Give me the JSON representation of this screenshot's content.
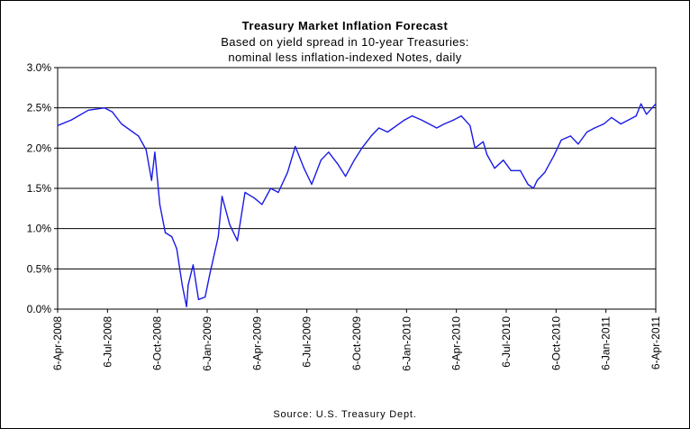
{
  "chart_data": {
    "type": "line",
    "title": "Treasury Market Inflation Forecast",
    "subtitle_lines": [
      "Based on yield spread in 10-year Treasuries:",
      "nominal less inflation-indexed Notes, daily"
    ],
    "source": "Source: U.S. Treasury Dept.",
    "xlabel": "",
    "ylabel": "",
    "ylim": [
      0,
      3.0
    ],
    "y_ticks": [
      "0.0%",
      "0.5%",
      "1.0%",
      "1.5%",
      "2.0%",
      "2.5%",
      "3.0%"
    ],
    "y_tick_values": [
      0,
      0.5,
      1.0,
      1.5,
      2.0,
      2.5,
      3.0
    ],
    "x_ticks": [
      "6-Apr-2008",
      "6-Jul-2008",
      "6-Oct-2008",
      "6-Jan-2009",
      "6-Apr-2009",
      "6-Jul-2009",
      "6-Oct-2009",
      "6-Jan-2010",
      "6-Apr-2010",
      "6-Jul-2010",
      "6-Oct-2010",
      "6-Jan-2011",
      "6-Apr-2011"
    ],
    "grid": "horizontal",
    "line_color": "#1a1ae6",
    "series": [
      {
        "x": [
          "2008-04-06",
          "2008-05-01",
          "2008-06-01",
          "2008-07-01",
          "2008-07-15",
          "2008-08-01",
          "2008-09-01",
          "2008-09-15",
          "2008-09-25",
          "2008-10-01",
          "2008-10-10",
          "2008-10-20",
          "2008-11-01",
          "2008-11-10",
          "2008-11-20",
          "2008-11-28",
          "2008-12-01",
          "2008-12-10",
          "2008-12-20",
          "2009-01-01",
          "2009-01-10",
          "2009-01-25",
          "2009-02-01",
          "2009-02-15",
          "2009-03-01",
          "2009-03-15",
          "2009-04-01",
          "2009-04-15",
          "2009-05-01",
          "2009-05-15",
          "2009-06-01",
          "2009-06-15",
          "2009-07-01",
          "2009-07-15",
          "2009-08-01",
          "2009-08-15",
          "2009-09-01",
          "2009-09-15",
          "2009-10-01",
          "2009-10-15",
          "2009-11-01",
          "2009-11-15",
          "2009-12-01",
          "2010-01-01",
          "2010-01-15",
          "2010-02-01",
          "2010-02-15",
          "2010-03-01",
          "2010-03-15",
          "2010-04-01",
          "2010-04-15",
          "2010-05-01",
          "2010-05-10",
          "2010-05-25",
          "2010-06-01",
          "2010-06-15",
          "2010-07-01",
          "2010-07-15",
          "2010-08-01",
          "2010-08-15",
          "2010-08-25",
          "2010-09-01",
          "2010-09-15",
          "2010-10-01",
          "2010-10-15",
          "2010-11-01",
          "2010-11-15",
          "2010-12-01",
          "2010-12-15",
          "2011-01-01",
          "2011-01-15",
          "2011-02-01",
          "2011-02-15",
          "2011-03-01",
          "2011-03-10",
          "2011-03-20",
          "2011-04-06"
        ],
        "values": [
          2.28,
          2.35,
          2.47,
          2.5,
          2.45,
          2.3,
          2.15,
          1.98,
          1.6,
          1.95,
          1.3,
          0.95,
          0.9,
          0.75,
          0.3,
          0.03,
          0.3,
          0.55,
          0.12,
          0.15,
          0.45,
          0.9,
          1.4,
          1.05,
          0.85,
          1.45,
          1.38,
          1.3,
          1.5,
          1.45,
          1.7,
          2.02,
          1.75,
          1.55,
          1.85,
          1.95,
          1.8,
          1.65,
          1.85,
          2.0,
          2.15,
          2.25,
          2.2,
          2.35,
          2.4,
          2.35,
          2.3,
          2.25,
          2.3,
          2.35,
          2.4,
          2.28,
          2.0,
          2.08,
          1.92,
          1.75,
          1.85,
          1.72,
          1.72,
          1.55,
          1.5,
          1.6,
          1.7,
          1.9,
          2.1,
          2.15,
          2.05,
          2.2,
          2.25,
          2.3,
          2.38,
          2.3,
          2.35,
          2.4,
          2.55,
          2.42,
          2.55
        ]
      }
    ]
  }
}
